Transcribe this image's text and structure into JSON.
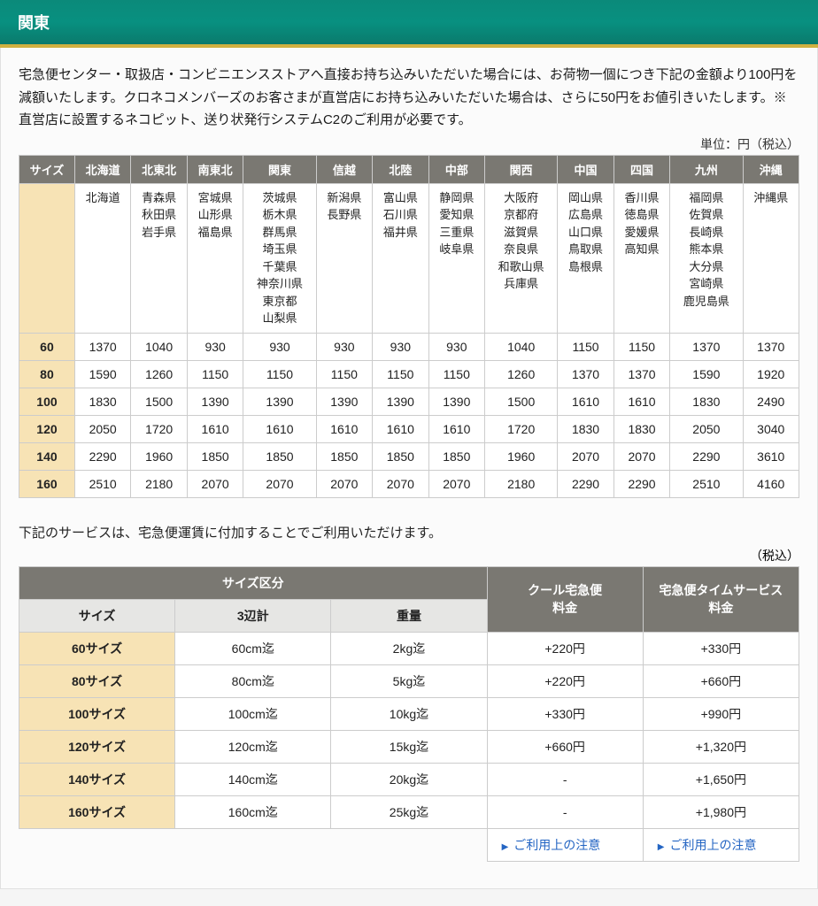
{
  "colors": {
    "header_gradient_top": "#0b8a7a",
    "header_gradient_bottom": "#0a7a6c",
    "header_underline": "#d0b040",
    "th_bg": "#7a7872",
    "th_fg": "#ffffff",
    "size_cell_bg": "#f7e3b5",
    "sub_th_bg": "#e6e6e4",
    "border": "#cccccc",
    "link": "#2465c3",
    "page_bg": "#fbfbfb"
  },
  "fonts": {
    "base_size_pt": 11,
    "header_size_pt": 14
  },
  "header": {
    "title": "関東"
  },
  "intro_text": "宅急便センター・取扱店・コンビニエンスストアへ直接お持ち込みいただいた場合には、お荷物一個につき下記の金額より100円を減額いたします。クロネコメンバーズのお客さまが直営店にお持ち込みいただいた場合は、さらに50円をお値引きいたします。※直営店に設置するネコピット、送り状発行システムC2のご利用が必要です。",
  "unit_note": "単位：円（税込）",
  "fare_table": {
    "type": "table",
    "headers": [
      "サイズ",
      "北海道",
      "北東北",
      "南東北",
      "関東",
      "信越",
      "北陸",
      "中部",
      "関西",
      "中国",
      "四国",
      "九州",
      "沖縄"
    ],
    "prefectures": [
      [
        ""
      ],
      [
        "北海道"
      ],
      [
        "青森県",
        "秋田県",
        "岩手県"
      ],
      [
        "宮城県",
        "山形県",
        "福島県"
      ],
      [
        "茨城県",
        "栃木県",
        "群馬県",
        "埼玉県",
        "千葉県",
        "神奈川県",
        "東京都",
        "山梨県"
      ],
      [
        "新潟県",
        "長野県"
      ],
      [
        "富山県",
        "石川県",
        "福井県"
      ],
      [
        "静岡県",
        "愛知県",
        "三重県",
        "岐阜県"
      ],
      [
        "大阪府",
        "京都府",
        "滋賀県",
        "奈良県",
        "和歌山県",
        "兵庫県"
      ],
      [
        "岡山県",
        "広島県",
        "山口県",
        "鳥取県",
        "島根県"
      ],
      [
        "香川県",
        "徳島県",
        "愛媛県",
        "高知県"
      ],
      [
        "福岡県",
        "佐賀県",
        "長崎県",
        "熊本県",
        "大分県",
        "宮崎県",
        "鹿児島県"
      ],
      [
        "沖縄県"
      ]
    ],
    "rows": [
      {
        "size": "60",
        "values": [
          "1370",
          "1040",
          "930",
          "930",
          "930",
          "930",
          "930",
          "1040",
          "1150",
          "1150",
          "1370",
          "1370"
        ]
      },
      {
        "size": "80",
        "values": [
          "1590",
          "1260",
          "1150",
          "1150",
          "1150",
          "1150",
          "1150",
          "1260",
          "1370",
          "1370",
          "1590",
          "1920"
        ]
      },
      {
        "size": "100",
        "values": [
          "1830",
          "1500",
          "1390",
          "1390",
          "1390",
          "1390",
          "1390",
          "1500",
          "1610",
          "1610",
          "1830",
          "2490"
        ]
      },
      {
        "size": "120",
        "values": [
          "2050",
          "1720",
          "1610",
          "1610",
          "1610",
          "1610",
          "1610",
          "1720",
          "1830",
          "1830",
          "2050",
          "3040"
        ]
      },
      {
        "size": "140",
        "values": [
          "2290",
          "1960",
          "1850",
          "1850",
          "1850",
          "1850",
          "1850",
          "1960",
          "2070",
          "2070",
          "2290",
          "3610"
        ]
      },
      {
        "size": "160",
        "values": [
          "2510",
          "2180",
          "2070",
          "2070",
          "2070",
          "2070",
          "2070",
          "2180",
          "2290",
          "2290",
          "2510",
          "4160"
        ]
      }
    ]
  },
  "mid_text": "下記のサービスは、宅急便運賃に付加することでご利用いただけます。",
  "tax_note": "（税込）",
  "service_table": {
    "type": "table",
    "group_header": "サイズ区分",
    "sub_headers": [
      "サイズ",
      "3辺計",
      "重量"
    ],
    "cool_header": "クール宅急便\n料金",
    "time_header": "宅急便タイムサービス\n料金",
    "rows": [
      {
        "size": "60サイズ",
        "dim": "60cm迄",
        "weight": "2kg迄",
        "cool": "+220円",
        "time": "+330円"
      },
      {
        "size": "80サイズ",
        "dim": "80cm迄",
        "weight": "5kg迄",
        "cool": "+220円",
        "time": "+660円"
      },
      {
        "size": "100サイズ",
        "dim": "100cm迄",
        "weight": "10kg迄",
        "cool": "+330円",
        "time": "+990円"
      },
      {
        "size": "120サイズ",
        "dim": "120cm迄",
        "weight": "15kg迄",
        "cool": "+660円",
        "time": "+1,320円"
      },
      {
        "size": "140サイズ",
        "dim": "140cm迄",
        "weight": "20kg迄",
        "cool": "-",
        "time": "+1,650円"
      },
      {
        "size": "160サイズ",
        "dim": "160cm迄",
        "weight": "25kg迄",
        "cool": "-",
        "time": "+1,980円"
      }
    ],
    "notice_link": "ご利用上の注意"
  }
}
